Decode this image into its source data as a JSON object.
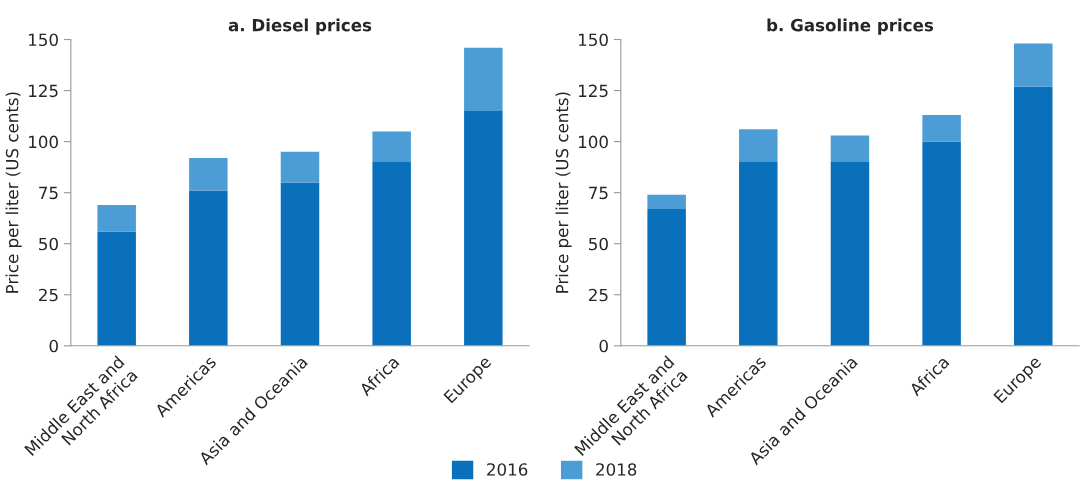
{
  "chart_data": [
    {
      "type": "bar",
      "title": "a. Diesel prices",
      "ylabel": "Price per liter (US cents)",
      "categories": [
        "Middle East and\nNorth Africa",
        "Americas",
        "Asia and Oceania",
        "Africa",
        "Europe"
      ],
      "stacked": true,
      "series": [
        {
          "name": "2016",
          "color": "#0a70bb",
          "values": [
            56,
            76,
            80,
            90,
            115
          ]
        },
        {
          "name": "2018",
          "color": "#4c9cd6",
          "values": [
            13,
            16,
            15,
            15,
            31
          ]
        }
      ],
      "ylim": [
        0,
        150
      ],
      "yticks": [
        0,
        25,
        50,
        75,
        100,
        125,
        150
      ],
      "grid": false,
      "legend": "bottom"
    },
    {
      "type": "bar",
      "title": "b. Gasoline prices",
      "ylabel": "Price per liter (US cents)",
      "categories": [
        "Middle East and\nNorth Africa",
        "Americas",
        "Asia and Oceania",
        "Africa",
        "Europe"
      ],
      "stacked": true,
      "series": [
        {
          "name": "2016",
          "color": "#0a70bb",
          "values": [
            67,
            90,
            90,
            100,
            127
          ]
        },
        {
          "name": "2018",
          "color": "#4c9cd6",
          "values": [
            7,
            16,
            13,
            13,
            21
          ]
        }
      ],
      "ylim": [
        0,
        150
      ],
      "yticks": [
        0,
        25,
        50,
        75,
        100,
        125,
        150
      ],
      "grid": false,
      "legend": "bottom"
    }
  ]
}
